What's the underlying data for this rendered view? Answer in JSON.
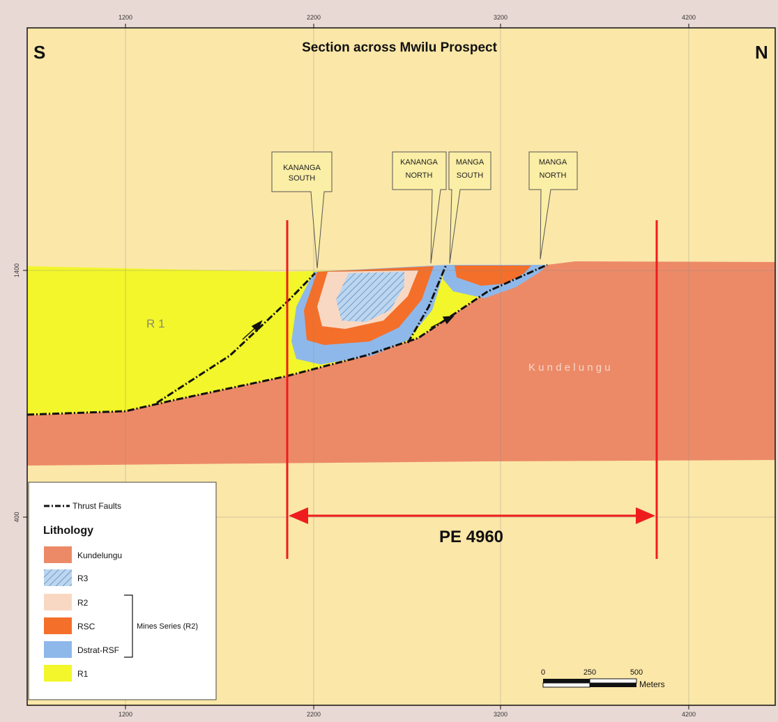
{
  "map": {
    "title": "Section across Mwilu Prospect",
    "left_direction": "S",
    "right_direction": "N",
    "x_ticks": [
      "1200",
      "2200",
      "3200",
      "4200"
    ],
    "y_ticks": [
      "1400",
      "400"
    ],
    "unit_labels": {
      "r1": "R 1",
      "kundelungu": "K u n d e l u n g u"
    },
    "callouts": [
      {
        "line1": "KANANGA",
        "line2": "SOUTH"
      },
      {
        "line1": "KANANGA",
        "line2": "NORTH"
      },
      {
        "line1": "MANGA",
        "line2": "SOUTH"
      },
      {
        "line1": "MANGA",
        "line2": "NORTH"
      }
    ],
    "licence_label": "PE 4960",
    "legend": {
      "fault_label": "Thrust Faults",
      "heading": "Lithology",
      "items": [
        {
          "label": "Kundelungu",
          "color": "#ec8a67"
        },
        {
          "label": "R3",
          "color": "#bcd6ef",
          "pattern": "diagonal-hatch"
        },
        {
          "label": "R2",
          "color": "#f9d8c3"
        },
        {
          "label": "RSC",
          "color": "#f36f2a"
        },
        {
          "label": "Dstrat-RSF",
          "color": "#8fb8ea"
        },
        {
          "label": "R1",
          "color": "#f2f62a"
        }
      ],
      "group_label": "Mines Series (R2)"
    },
    "scale_bar": {
      "ticks": [
        "0",
        "250",
        "500"
      ],
      "unit": "Meters"
    },
    "colors": {
      "background": "#fbe7a8",
      "kundelungu": "#ec8a67",
      "r1": "#f2f62a",
      "rsc": "#f36f2a",
      "r2": "#f9d8c3",
      "r3": "#bcd6ef",
      "dstrat": "#8fb8ea",
      "licence": "#ee1c1c",
      "callout_fill": "#fbeea6"
    }
  }
}
